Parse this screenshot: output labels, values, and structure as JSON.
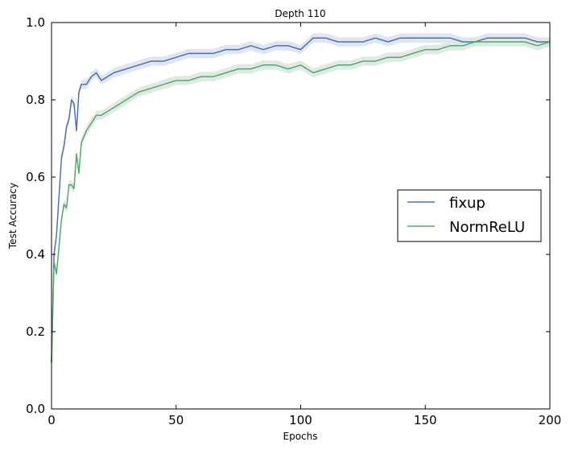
{
  "chart_data": {
    "type": "line",
    "title": "Depth 110",
    "xlabel": "Epochs",
    "ylabel": "Test Accuracy",
    "xlim": [
      0,
      200
    ],
    "ylim": [
      0.0,
      1.0
    ],
    "xticks": [
      "0",
      "50",
      "100",
      "150",
      "200"
    ],
    "yticks": [
      "0.0",
      "0.2",
      "0.4",
      "0.6",
      "0.8",
      "1.0"
    ],
    "grid": false,
    "legend_position": "center-right",
    "series": [
      {
        "name": "fixup",
        "color": "#4c72b0",
        "band_color": "#dde3ef",
        "x": [
          0,
          1,
          2,
          3,
          4,
          5,
          6,
          7,
          8,
          9,
          10,
          11,
          12,
          14,
          16,
          18,
          20,
          25,
          30,
          35,
          40,
          45,
          50,
          55,
          60,
          65,
          70,
          75,
          80,
          85,
          90,
          95,
          100,
          105,
          110,
          115,
          120,
          125,
          130,
          135,
          140,
          145,
          150,
          155,
          160,
          165,
          170,
          175,
          180,
          185,
          190,
          195,
          200
        ],
        "values": [
          0.12,
          0.4,
          0.45,
          0.55,
          0.65,
          0.68,
          0.73,
          0.75,
          0.8,
          0.79,
          0.72,
          0.82,
          0.84,
          0.84,
          0.86,
          0.87,
          0.85,
          0.87,
          0.88,
          0.89,
          0.9,
          0.9,
          0.91,
          0.92,
          0.92,
          0.92,
          0.93,
          0.93,
          0.94,
          0.93,
          0.94,
          0.94,
          0.93,
          0.96,
          0.96,
          0.95,
          0.95,
          0.95,
          0.96,
          0.95,
          0.96,
          0.96,
          0.96,
          0.96,
          0.96,
          0.95,
          0.95,
          0.96,
          0.96,
          0.96,
          0.96,
          0.95,
          0.95
        ]
      },
      {
        "name": "NormReLU",
        "color": "#55a868",
        "band_color": "#dde8e0",
        "x": [
          0,
          1,
          2,
          3,
          4,
          5,
          6,
          7,
          8,
          9,
          10,
          11,
          12,
          14,
          16,
          18,
          20,
          25,
          30,
          35,
          40,
          45,
          50,
          55,
          60,
          65,
          70,
          75,
          80,
          85,
          90,
          95,
          100,
          105,
          110,
          115,
          120,
          125,
          130,
          135,
          140,
          145,
          150,
          155,
          160,
          165,
          170,
          175,
          180,
          185,
          190,
          195,
          200
        ],
        "values": [
          0.12,
          0.38,
          0.35,
          0.42,
          0.49,
          0.53,
          0.52,
          0.58,
          0.58,
          0.57,
          0.66,
          0.61,
          0.69,
          0.72,
          0.74,
          0.76,
          0.76,
          0.78,
          0.8,
          0.82,
          0.83,
          0.84,
          0.85,
          0.85,
          0.86,
          0.86,
          0.87,
          0.88,
          0.88,
          0.89,
          0.89,
          0.88,
          0.89,
          0.87,
          0.88,
          0.89,
          0.89,
          0.9,
          0.9,
          0.91,
          0.91,
          0.92,
          0.93,
          0.93,
          0.94,
          0.94,
          0.95,
          0.95,
          0.95,
          0.95,
          0.95,
          0.94,
          0.95
        ]
      }
    ]
  }
}
